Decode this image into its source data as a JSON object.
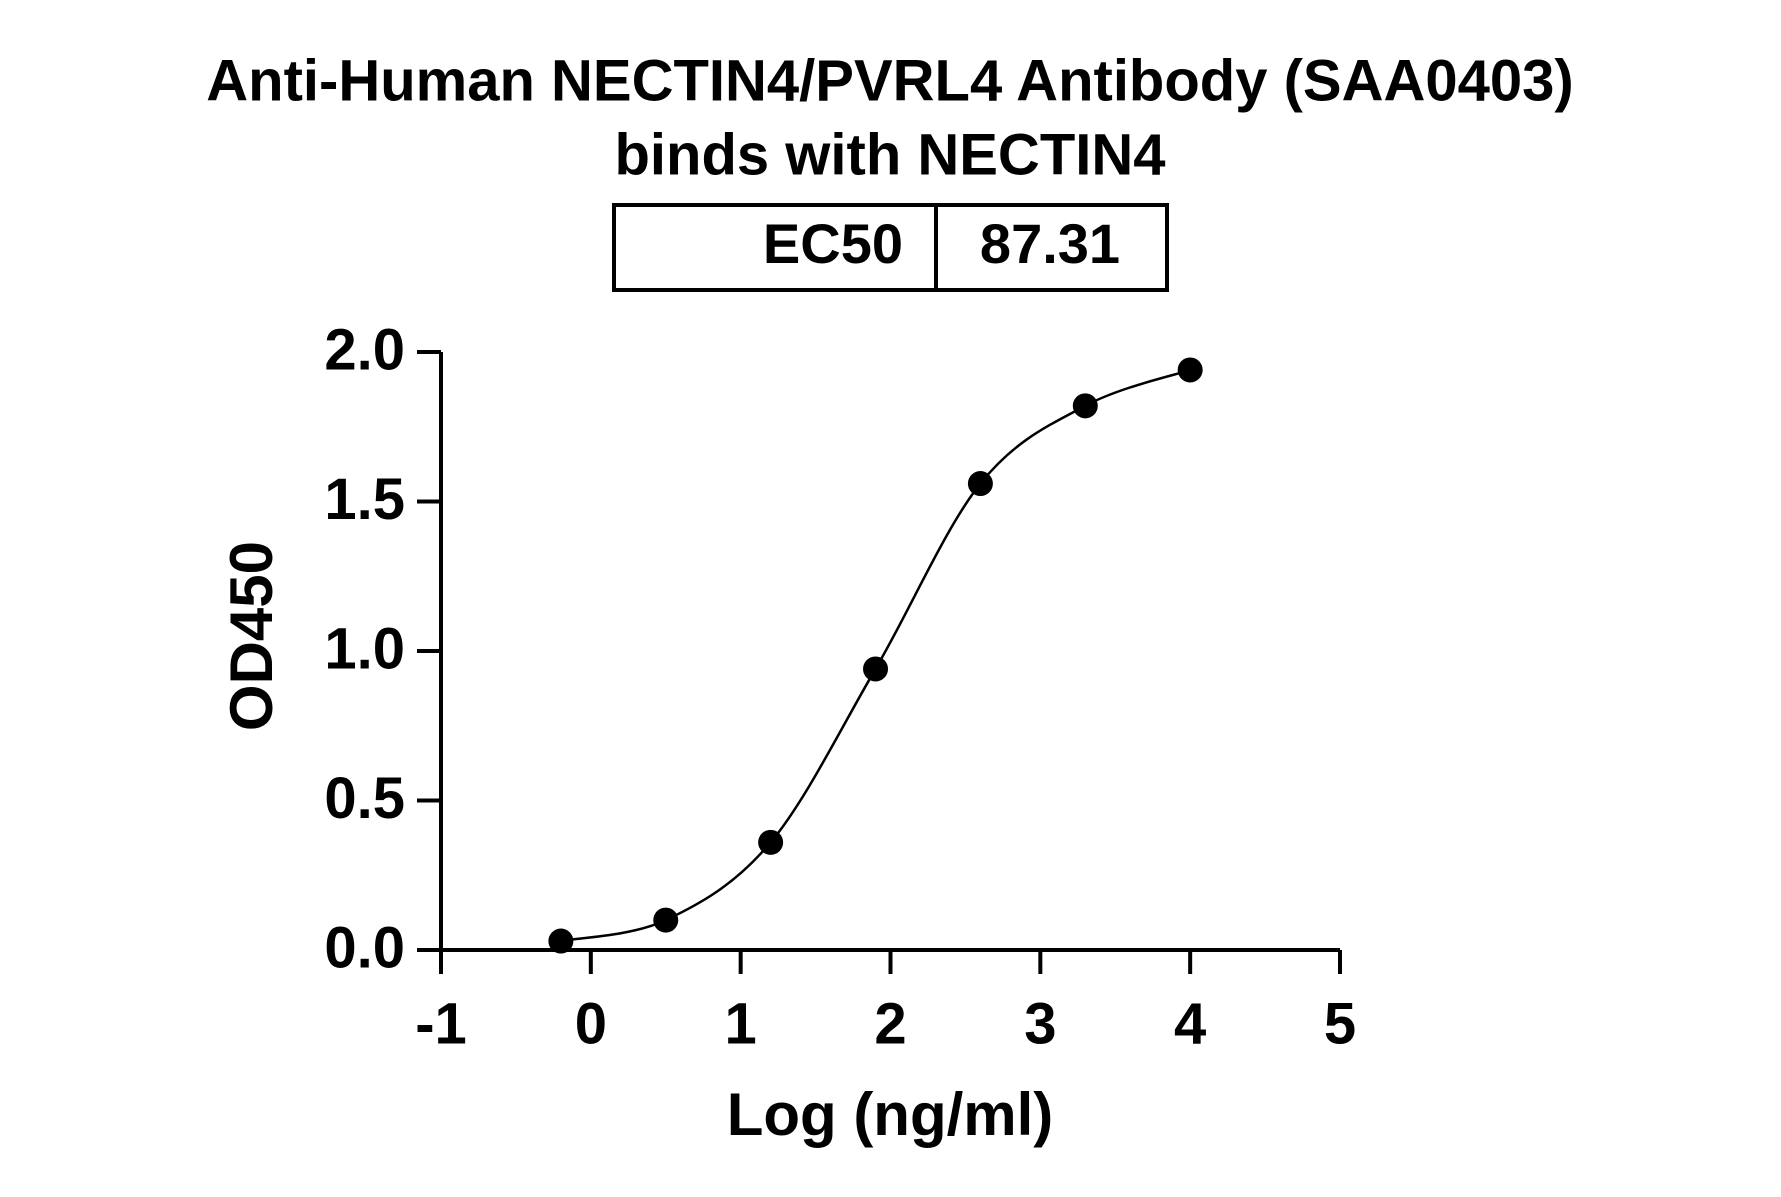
{
  "chart_data": {
    "type": "scatter",
    "title": [
      "Anti-Human NECTIN4/PVRL4 Antibody (SAA0403)",
      "binds with NECTIN4"
    ],
    "annotation": {
      "label": "EC50",
      "value": "87.31"
    },
    "x_label": "Log (ng/ml)",
    "y_label": "OD450",
    "x": [
      -0.2,
      0.5,
      1.2,
      1.9,
      2.6,
      3.3,
      4.0
    ],
    "series": [
      {
        "color": "#000000",
        "values": [
          0.03,
          0.1,
          0.36,
          0.94,
          1.56,
          1.82,
          1.94
        ]
      }
    ],
    "xlim": [
      -1,
      5
    ],
    "xticks": [
      -1,
      0,
      1,
      2,
      3,
      4,
      5
    ],
    "ylim": [
      0,
      2
    ],
    "yticks": [
      {
        "value": 0,
        "label": "0.0"
      },
      {
        "value": 0.5,
        "label": "0.5"
      },
      {
        "value": 1,
        "label": "1.0"
      },
      {
        "value": 1.5,
        "label": "1.5"
      },
      {
        "value": 2,
        "label": "2.0"
      }
    ],
    "curve": true
  }
}
